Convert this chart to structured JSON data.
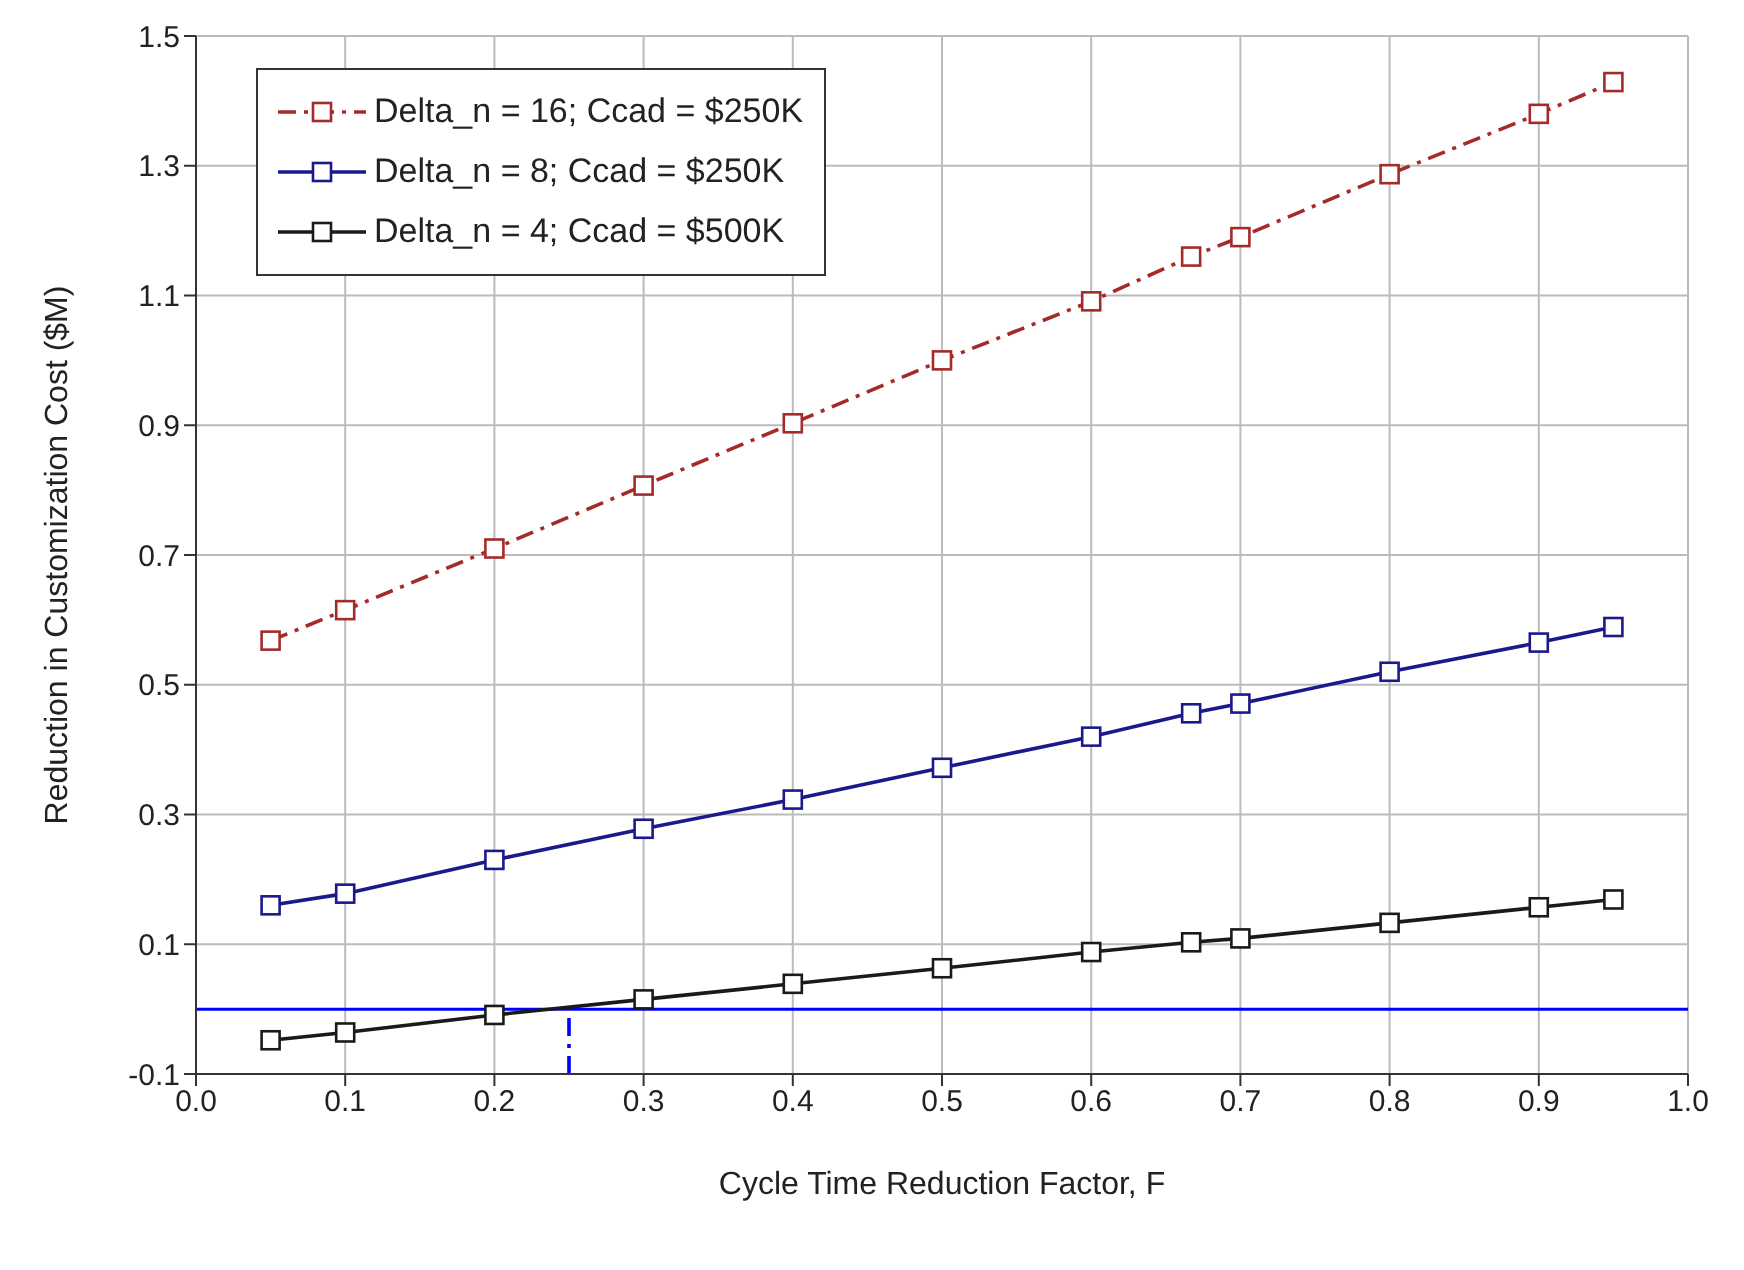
{
  "chart_data": {
    "type": "line",
    "xlabel": "Cycle Time Reduction Factor, F",
    "ylabel": "Reduction in Customization Cost ($M)",
    "xlim": [
      0,
      1
    ],
    "xticks": [
      {
        "value": 0,
        "label": "0.0"
      },
      0.1,
      0.2,
      0.3,
      0.4,
      0.5,
      0.6,
      0.7,
      0.8,
      0.9,
      {
        "value": 1,
        "label": "1.0"
      }
    ],
    "ylim": [
      -0.1,
      1.5
    ],
    "yticks": [
      -0.1,
      0.1,
      0.3,
      0.5,
      0.7,
      0.9,
      1.1,
      1.3,
      1.5
    ],
    "grid": true,
    "legend": "top left",
    "marker": "square",
    "x": [
      0.05,
      0.1,
      0.2,
      0.3,
      0.4,
      0.5,
      0.6,
      0.667,
      0.7,
      0.8,
      0.9,
      0.95
    ],
    "series": [
      {
        "name": "Delta_n = 16; Ccad = $250K",
        "color": "#a52a2a",
        "line_style": "dashed",
        "values": [
          0.568,
          0.615,
          0.71,
          0.807,
          0.903,
          1.0,
          1.091,
          1.16,
          1.19,
          1.287,
          1.38,
          1.429
        ]
      },
      {
        "name": "Delta_n = 8; Ccad = $250K",
        "color": "#1a1a8c",
        "line_style": "solid",
        "values": [
          0.16,
          0.178,
          0.23,
          0.278,
          0.323,
          0.372,
          0.42,
          0.456,
          0.471,
          0.52,
          0.565,
          0.589
        ]
      },
      {
        "name": "Delta_n = 4; Ccad = $500K",
        "color": "#1a1a1a",
        "line_style": "solid",
        "values": [
          -0.048,
          -0.036,
          -0.009,
          0.015,
          0.039,
          0.063,
          0.088,
          0.103,
          0.109,
          0.133,
          0.157,
          0.169
        ]
      },
      {
        "type": "line",
        "color": "#0000ff",
        "line_style": "dashed",
        "marker": "none",
        "x": [
          0.25,
          0.25
        ],
        "values": [
          -0.1,
          0
        ]
      }
    ],
    "ref_lines": [
      {
        "axis": "y",
        "value": 0,
        "color": "#0000ff",
        "line_style": "solid"
      }
    ]
  }
}
